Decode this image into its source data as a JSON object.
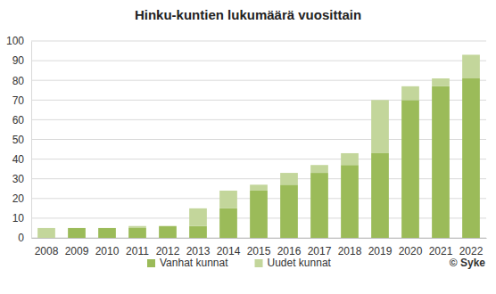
{
  "chart_data": {
    "type": "bar",
    "title": "Hinku-kuntien lukumäärä vuosittain",
    "categories": [
      "2008",
      "2009",
      "2010",
      "2011",
      "2012",
      "2013",
      "2014",
      "2015",
      "2016",
      "2017",
      "2018",
      "2019",
      "2020",
      "2021",
      "2022"
    ],
    "series": [
      {
        "name": "Vanhat kunnat",
        "color": "#9bbb59",
        "values": [
          0,
          5,
          5,
          5,
          6,
          6,
          15,
          24,
          27,
          33,
          37,
          43,
          70,
          77,
          81
        ]
      },
      {
        "name": "Uudet kunnat",
        "color": "#c3d69b",
        "values": [
          5,
          0,
          0,
          1,
          0,
          9,
          9,
          3,
          6,
          4,
          6,
          27,
          7,
          4,
          12
        ]
      }
    ],
    "ylim": [
      0,
      100
    ],
    "yticks": [
      0,
      10,
      20,
      30,
      40,
      50,
      60,
      70,
      80,
      90,
      100
    ],
    "grid": true,
    "stacked": true,
    "legend": "bottom",
    "annotations": [
      "© Syke"
    ]
  }
}
